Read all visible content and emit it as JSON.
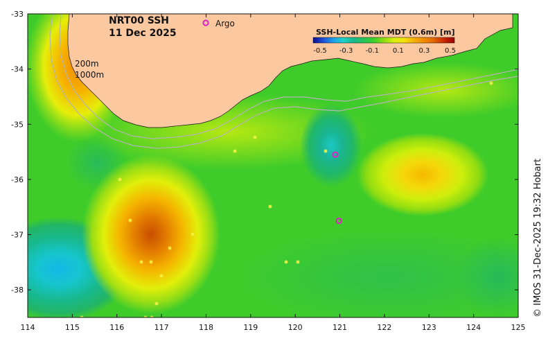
{
  "title": {
    "line1": "NRT00 SSH",
    "line2": "11 Dec 2025"
  },
  "legend": {
    "argo_symbol": "o",
    "argo_label": "Argo"
  },
  "contour_labels": {
    "depth_200": "200m",
    "depth_1000": "1000m"
  },
  "colorbar": {
    "title": "SSH-Local Mean MDT (0.6m) [m]",
    "ticks": [
      "-0.5",
      "-0.3",
      "-0.1",
      "0.1",
      "0.3",
      "0.5"
    ],
    "colors": [
      "#0b0b8a",
      "#1f4fd8",
      "#1fa0e6",
      "#1fd1c8",
      "#19b98a",
      "#27c25a",
      "#39cf2b",
      "#8fdc12",
      "#d6f00a",
      "#f4e20a",
      "#f6b000",
      "#f08a00",
      "#e26400",
      "#c82800",
      "#9a0000"
    ]
  },
  "credit": "© IMOS 31-Dec-2025 19:32 Hobart",
  "chart_data": {
    "type": "map",
    "xlim": [
      114,
      125
    ],
    "ylim": [
      -38.5,
      -33
    ],
    "x_ticks": [
      "114",
      "115",
      "116",
      "117",
      "118",
      "119",
      "120",
      "121",
      "122",
      "123",
      "124",
      "125"
    ],
    "y_ticks": [
      "-33",
      "-34",
      "-35",
      "-36",
      "-37",
      "-38"
    ],
    "colors": {
      "land": "#fbc8a0",
      "ocean_base": "#3fcc2a",
      "argo_marker": "#e020c0",
      "bathy_contour": "#b4b4b4"
    },
    "features": [
      {
        "name": "warm-eddy-center",
        "lon": 116.9,
        "lat": -37.0,
        "ssh": 0.45
      },
      {
        "name": "cold-eddy-west",
        "lon": 114.7,
        "lat": -37.7,
        "ssh": -0.2
      },
      {
        "name": "cold-eddy-central",
        "lon": 120.8,
        "lat": -35.5,
        "ssh": -0.1
      },
      {
        "name": "warm-eddy-east",
        "lon": 123.1,
        "lat": -35.9,
        "ssh": 0.25
      },
      {
        "name": "leeuwin-current-coastal",
        "lon": 115.1,
        "lat": -33.6,
        "ssh": 0.35
      }
    ],
    "argo_floats": [
      {
        "lon": 120.9,
        "lat": -35.55
      },
      {
        "lon": 120.98,
        "lat": -36.75
      }
    ]
  }
}
